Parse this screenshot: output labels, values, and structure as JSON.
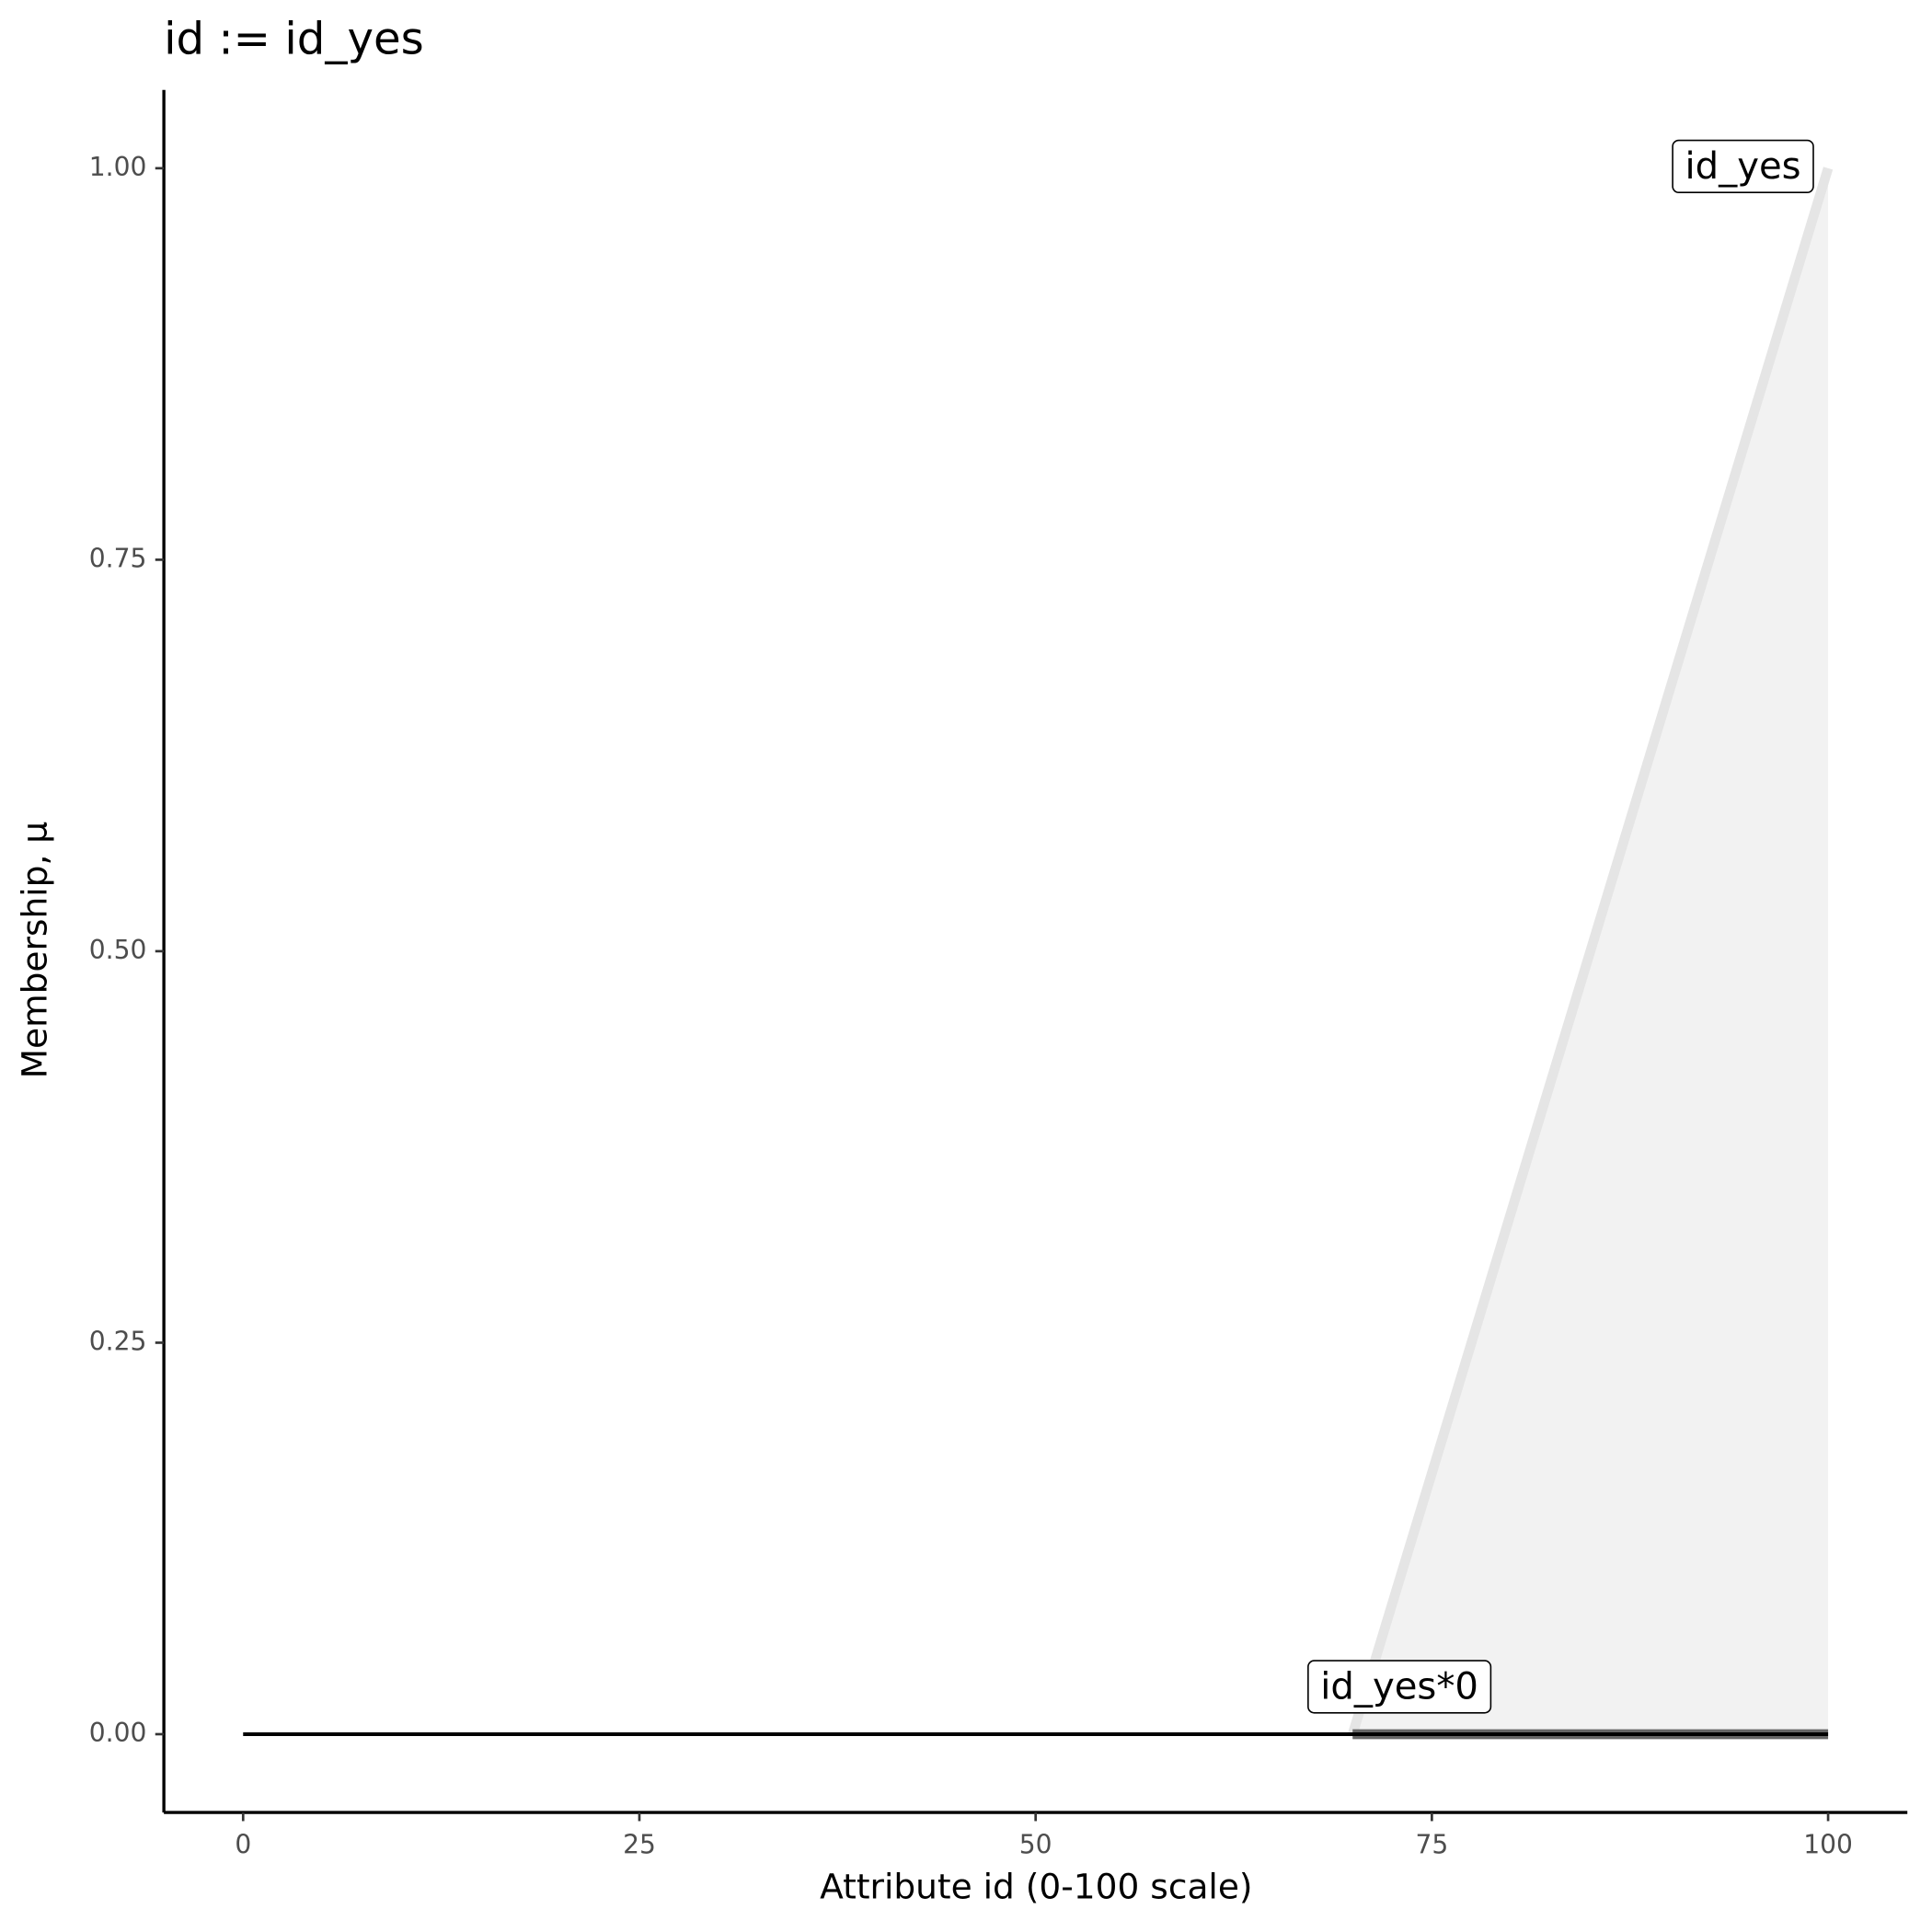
{
  "chart_data": {
    "type": "line",
    "title": "id := id_yes",
    "x_label": "Attribute id (0-100 scale)",
    "y_label": "Membership, μ",
    "xlim": [
      -5,
      105
    ],
    "xticks": [
      0,
      25,
      50,
      75,
      100
    ],
    "ylim": [
      -0.05,
      1.05
    ],
    "yticks": [
      {
        "value": 0,
        "label": "0.00"
      },
      0.25,
      {
        "value": 0.5,
        "label": "0.50"
      },
      0.75,
      {
        "value": 1,
        "label": "1.00"
      }
    ],
    "series": [
      {
        "name": "id_yes",
        "color": "#e5e5e5",
        "fill": "#f2f2f2",
        "x": [
          70,
          100
        ],
        "values": [
          0,
          1
        ]
      },
      {
        "name": "id_yes*0",
        "color": "#666666",
        "x": [
          70,
          100
        ],
        "values": [
          0,
          0
        ]
      },
      {
        "color": "#000000",
        "x": [
          0,
          100
        ],
        "values": [
          0,
          0
        ]
      }
    ]
  }
}
